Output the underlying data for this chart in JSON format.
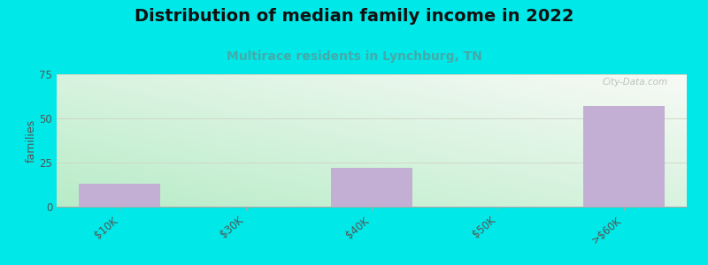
{
  "categories": [
    "$10K",
    "$30K",
    "$40K",
    "$50K",
    ">$60K"
  ],
  "values": [
    13,
    0,
    22,
    0,
    57
  ],
  "bar_color": "#c4afd4",
  "title": "Distribution of median family income in 2022",
  "subtitle": "Multirace residents in Lynchburg, TN",
  "ylabel": "families",
  "ylim": [
    0,
    75
  ],
  "yticks": [
    0,
    25,
    50,
    75
  ],
  "figure_bg": "#00e8e8",
  "grad_bottom_left": "#b8ecc8",
  "grad_top_right": "#f0f4ec",
  "grad_top_left": "#e0f5e8",
  "grad_bottom_right": "#e8f2e0",
  "title_fontsize": 14,
  "subtitle_fontsize": 10,
  "subtitle_color": "#44aaaa",
  "watermark": "City-Data.com",
  "tick_label_color": "#555555",
  "grid_color": "#d0d8c8",
  "spine_color": "#aaaaaa"
}
